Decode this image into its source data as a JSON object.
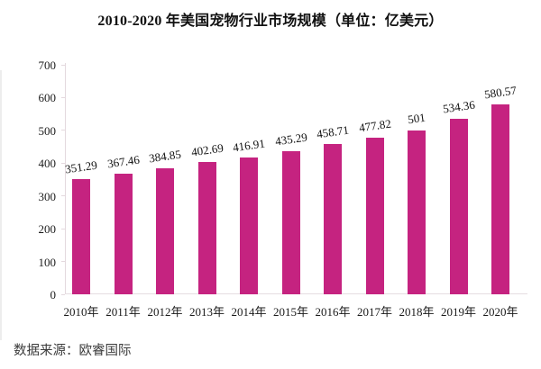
{
  "title": "2010-2020 年美国宠物行业市场规模（单位：亿美元）",
  "source_note": "数据来源：欧睿国际",
  "colors": {
    "bar": "#c52380",
    "axis_line": "#e4d9de",
    "title_text": "#111111",
    "tick_text": "#1a1a1a",
    "source_text": "#3b3b3b"
  },
  "chart_data": {
    "type": "bar",
    "title": "2010-2020 年美国宠物行业市场规模（单位：亿美元）",
    "categories": [
      "2010年",
      "2011年",
      "2012年",
      "2013年",
      "2014年",
      "2015年",
      "2016年",
      "2017年",
      "2018年",
      "2019年",
      "2020年"
    ],
    "values": [
      351.29,
      367.46,
      384.85,
      402.69,
      416.91,
      435.29,
      458.71,
      477.82,
      501,
      534.36,
      580.57
    ],
    "value_labels": [
      "351.29",
      "367.46",
      "384.85",
      "402.69",
      "416.91",
      "435.29",
      "458.71",
      "477.82",
      "501",
      "534.36",
      "580.57"
    ],
    "xlabel": "",
    "ylabel": "",
    "ylim": [
      0,
      700
    ],
    "ytick_step": 100,
    "ytick_labels": [
      "0",
      "100",
      "200",
      "300",
      "400",
      "500",
      "600",
      "700"
    ],
    "grid": false,
    "legend": "none",
    "data_labels": "above-bars-rotated"
  }
}
